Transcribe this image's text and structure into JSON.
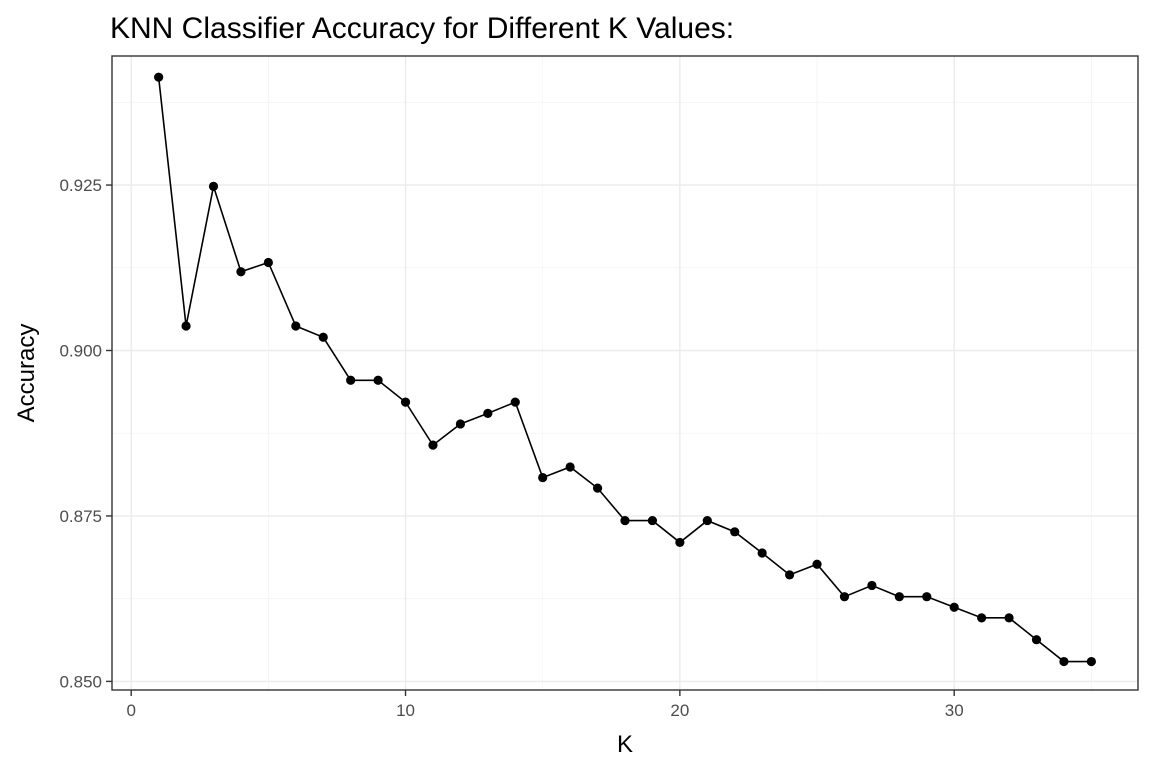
{
  "chart_data": {
    "type": "line",
    "title": "KNN Classifier Accuracy for Different K Values:",
    "xlabel": "K",
    "ylabel": "Accuracy",
    "xlim": [
      -0.7,
      36.7
    ],
    "ylim": [
      0.8487,
      0.9445
    ],
    "x_ticks": [
      0,
      10,
      20,
      30
    ],
    "x_tick_labels": [
      "0",
      "10",
      "20",
      "30"
    ],
    "y_ticks": [
      0.85,
      0.875,
      0.9,
      0.925
    ],
    "y_tick_labels": [
      "0.850",
      "0.875",
      "0.900",
      "0.925"
    ],
    "grid": true,
    "legend": "none",
    "series": [
      {
        "color": "#000000",
        "x": [
          1,
          2,
          3,
          4,
          5,
          6,
          7,
          8,
          9,
          10,
          11,
          12,
          13,
          14,
          15,
          16,
          17,
          18,
          19,
          20,
          21,
          22,
          23,
          24,
          25,
          26,
          27,
          28,
          29,
          30,
          31,
          32,
          33,
          34,
          35
        ],
        "values": [
          0.9413,
          0.9037,
          0.9248,
          0.9119,
          0.9133,
          0.9037,
          0.902,
          0.8955,
          0.8955,
          0.8922,
          0.8857,
          0.8889,
          0.8905,
          0.8922,
          0.8808,
          0.8824,
          0.8792,
          0.8743,
          0.8743,
          0.871,
          0.8743,
          0.8726,
          0.8694,
          0.8661,
          0.8677,
          0.8628,
          0.8645,
          0.8628,
          0.8628,
          0.8612,
          0.8596,
          0.8596,
          0.8563,
          0.853,
          0.853
        ]
      }
    ]
  }
}
